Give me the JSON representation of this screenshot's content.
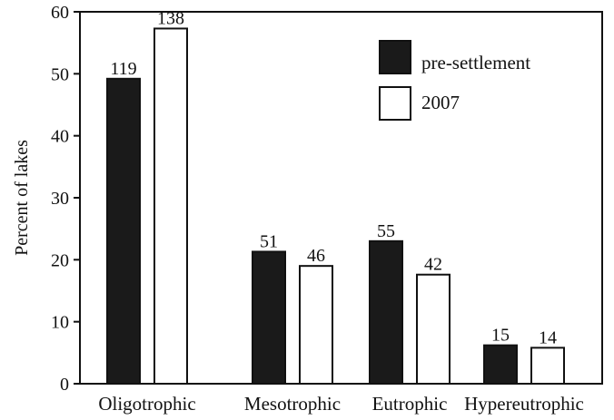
{
  "chart_data": {
    "type": "bar",
    "categories": [
      "Oligotrophic",
      "Mesotrophic",
      "Eutrophic",
      "Hypereutrophic"
    ],
    "series": [
      {
        "name": "pre-settlement",
        "values": [
          49.2,
          21.3,
          23.0,
          6.2
        ],
        "labels": [
          "119",
          "51",
          "55",
          "15"
        ],
        "color": "#1a1a1a"
      },
      {
        "name": "2007",
        "values": [
          57.3,
          19.0,
          17.6,
          5.8
        ],
        "labels": [
          "138",
          "46",
          "42",
          "14"
        ],
        "color": "#ffffff"
      }
    ],
    "title": "",
    "xlabel": "",
    "ylabel": "Percent of lakes",
    "ylim": [
      0,
      60
    ],
    "yticks": [
      "0",
      "10",
      "20",
      "30",
      "40",
      "50",
      "60"
    ],
    "legend_position": "top-right",
    "grid": false
  }
}
